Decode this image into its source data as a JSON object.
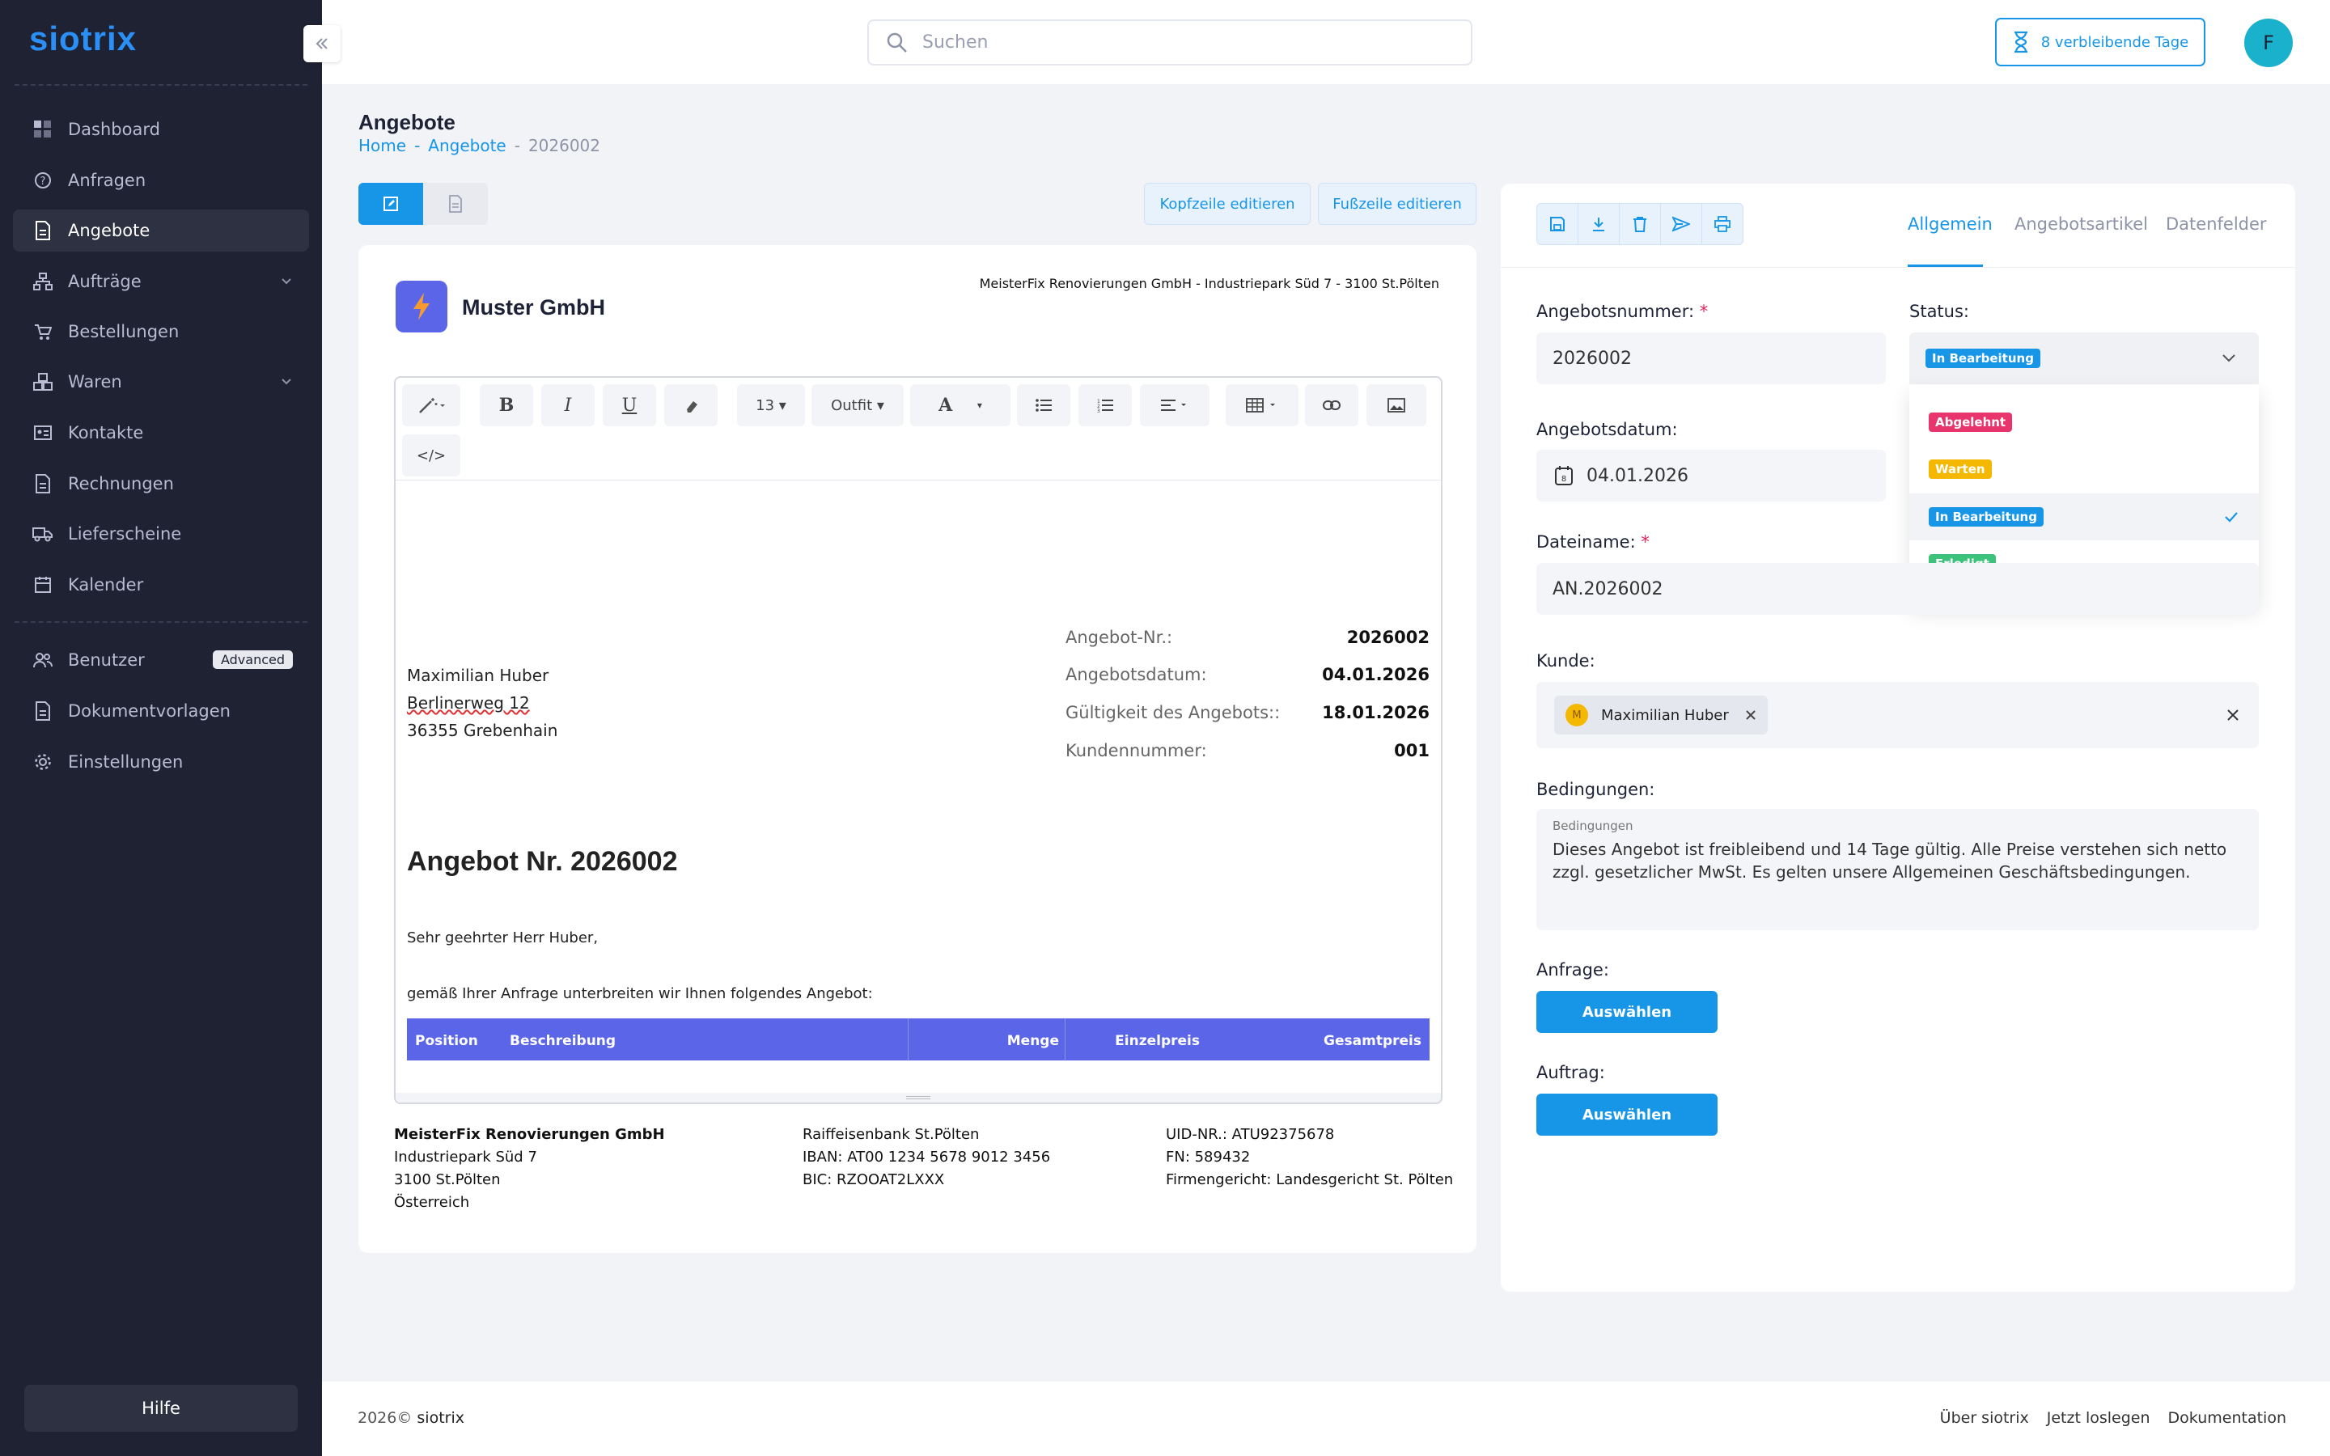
{
  "app": {
    "logo": "siotrix"
  },
  "sidebar": {
    "items": [
      {
        "label": "Dashboard",
        "icon": "grid-icon"
      },
      {
        "label": "Anfragen",
        "icon": "question-circle-icon"
      },
      {
        "label": "Angebote",
        "icon": "document-icon",
        "active": true
      },
      {
        "label": "Aufträge",
        "icon": "sitemap-icon",
        "expandable": true
      },
      {
        "label": "Bestellungen",
        "icon": "cart-icon"
      },
      {
        "label": "Waren",
        "icon": "boxes-icon",
        "expandable": true
      },
      {
        "label": "Kontakte",
        "icon": "contact-card-icon"
      },
      {
        "label": "Rechnungen",
        "icon": "invoice-icon"
      },
      {
        "label": "Lieferscheine",
        "icon": "truck-icon"
      },
      {
        "label": "Kalender",
        "icon": "calendar-icon"
      }
    ],
    "secondary": [
      {
        "label": "Benutzer",
        "icon": "users-icon",
        "badge": "Advanced"
      },
      {
        "label": "Dokumentvorlagen",
        "icon": "template-icon"
      },
      {
        "label": "Einstellungen",
        "icon": "gear-icon"
      }
    ],
    "help": "Hilfe"
  },
  "topbar": {
    "search_placeholder": "Suchen",
    "trial": "8 verbleibende Tage",
    "avatar": "F"
  },
  "page": {
    "title": "Angebote",
    "breadcrumb": {
      "home": "Home",
      "section": "Angebote",
      "current": "2026002"
    },
    "buttons": {
      "header": "Kopfzeile editieren",
      "footer": "Fußzeile editieren"
    }
  },
  "document": {
    "company_name": "Muster GmbH",
    "sender_line": "MeisterFix Renovierungen GmbH - Industriepark Süd 7 - 3100 St.Pölten",
    "toolbar": {
      "font_size": "13",
      "font_family": "Outfit"
    },
    "recipient": {
      "name": "Maximilian Huber",
      "street": "Berlinerweg 12",
      "city": "36355 Grebenhain"
    },
    "meta": [
      {
        "label": "Angebot-Nr.:",
        "value": "2026002"
      },
      {
        "label": "Angebotsdatum:",
        "value": "04.01.2026"
      },
      {
        "label": "Gültigkeit des Angebots::",
        "value": "18.01.2026"
      },
      {
        "label": "Kundennummer:",
        "value": "001"
      }
    ],
    "heading": "Angebot Nr. 2026002",
    "salutation": "Sehr geehrter Herr Huber,",
    "intro": "gemäß Ihrer Anfrage unterbreiten wir Ihnen folgendes Angebot:",
    "table_headers": {
      "position": "Position",
      "description": "Beschreibung",
      "quantity": "Menge",
      "unit_price": "Einzelpreis",
      "total": "Gesamtpreis"
    },
    "footer": {
      "col1": {
        "name": "MeisterFix Renovierungen GmbH",
        "l1": "Industriepark Süd 7",
        "l2": "3100 St.Pölten",
        "l3": "Österreich"
      },
      "col2": {
        "l1": "Raiffeisenbank St.Pölten",
        "l2": "IBAN: AT00 1234 5678 9012 3456",
        "l3": "BIC: RZOOAT2LXXX"
      },
      "col3": {
        "l1": "UID-NR.: ATU92375678",
        "l2": "FN: 589432",
        "l3": "Firmengericht: Landesgericht St. Pölten"
      }
    }
  },
  "form": {
    "tabs": [
      "Allgemein",
      "Angebotsartikel",
      "Datenfelder"
    ],
    "number_label": "Angebotsnummer:",
    "number_value": "2026002",
    "status_label": "Status:",
    "status_value": "In Bearbeitung",
    "status_options": [
      {
        "label": "Abgelehnt",
        "color": "#e8356d"
      },
      {
        "label": "Warten",
        "color": "#f5b800"
      },
      {
        "label": "In Bearbeitung",
        "color": "#1796e8",
        "selected": true
      },
      {
        "label": "Erledigt",
        "color": "#3cc27a"
      }
    ],
    "date_label": "Angebotsdatum:",
    "date_value": "04.01.2026",
    "filename_label": "Dateiname:",
    "filename_value": "AN.2026002",
    "customer_label": "Kunde:",
    "customer_initial": "M",
    "customer_value": "Maximilian Huber",
    "conditions_label": "Bedingungen:",
    "conditions_placeholder": "Bedingungen",
    "conditions_value": "Dieses Angebot ist freibleibend und 14 Tage gültig. Alle Preise verstehen sich netto zzgl. gesetzlicher MwSt. Es gelten unsere Allgemeinen Geschäftsbedingungen.",
    "inquiry_label": "Anfrage:",
    "order_label": "Auftrag:",
    "select_button": "Auswählen"
  },
  "footer": {
    "copyright": "2026©",
    "brand": "siotrix",
    "links": [
      "Über siotrix",
      "Jetzt loslegen",
      "Dokumentation"
    ]
  },
  "colors": {
    "accent": "#1796e8",
    "sidebar": "#1f2232",
    "table_header": "#5b65e8"
  }
}
